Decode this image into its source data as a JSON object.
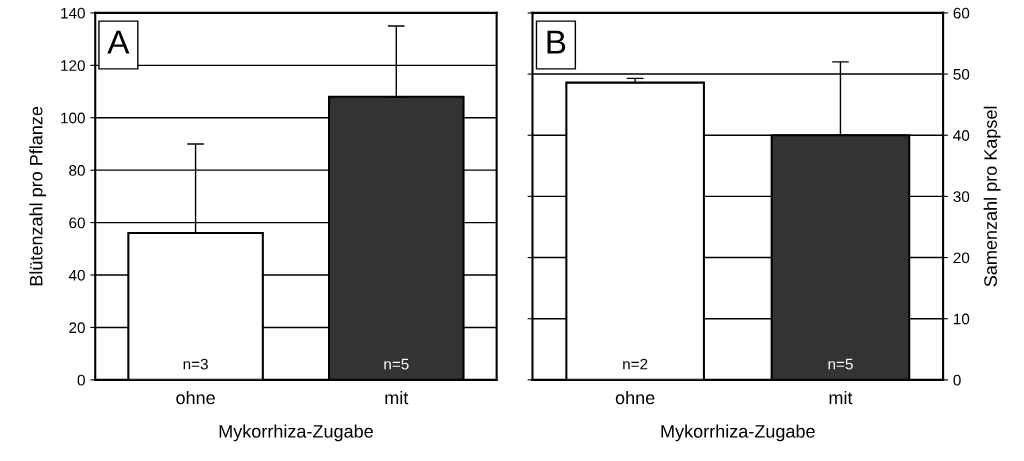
{
  "chart_data": [
    {
      "type": "bar",
      "categories": [
        "ohne",
        "mit"
      ],
      "xlabel": "Mykorrhiza-Zugabe",
      "ylabel": "Blütenzahl pro Pflanze",
      "values": [
        56,
        108
      ],
      "colors": [
        "#ffffff",
        "#333333"
      ],
      "errors": [
        [
          56,
          90
        ],
        [
          108,
          135
        ]
      ],
      "ylim": [
        0,
        140
      ],
      "yticks": [
        0,
        20,
        40,
        60,
        80,
        100,
        120,
        140
      ],
      "grid": "y",
      "annotations": [
        "A",
        "n=3",
        "n=5"
      ]
    },
    {
      "type": "bar",
      "categories": [
        "ohne",
        "mit"
      ],
      "xlabel": "Mykorrhiza-Zugabe",
      "ylabel": "Samenzahl pro Kapsel",
      "values": [
        48.6,
        40
      ],
      "colors": [
        "#ffffff",
        "#333333"
      ],
      "errors": [
        [
          48.6,
          49.3
        ],
        [
          40,
          52
        ]
      ],
      "ylim": [
        0,
        60
      ],
      "yticks": [
        0,
        10,
        20,
        30,
        40,
        50,
        60
      ],
      "grid": "y",
      "annotations": [
        "B",
        "n=2",
        "n=5"
      ]
    }
  ]
}
